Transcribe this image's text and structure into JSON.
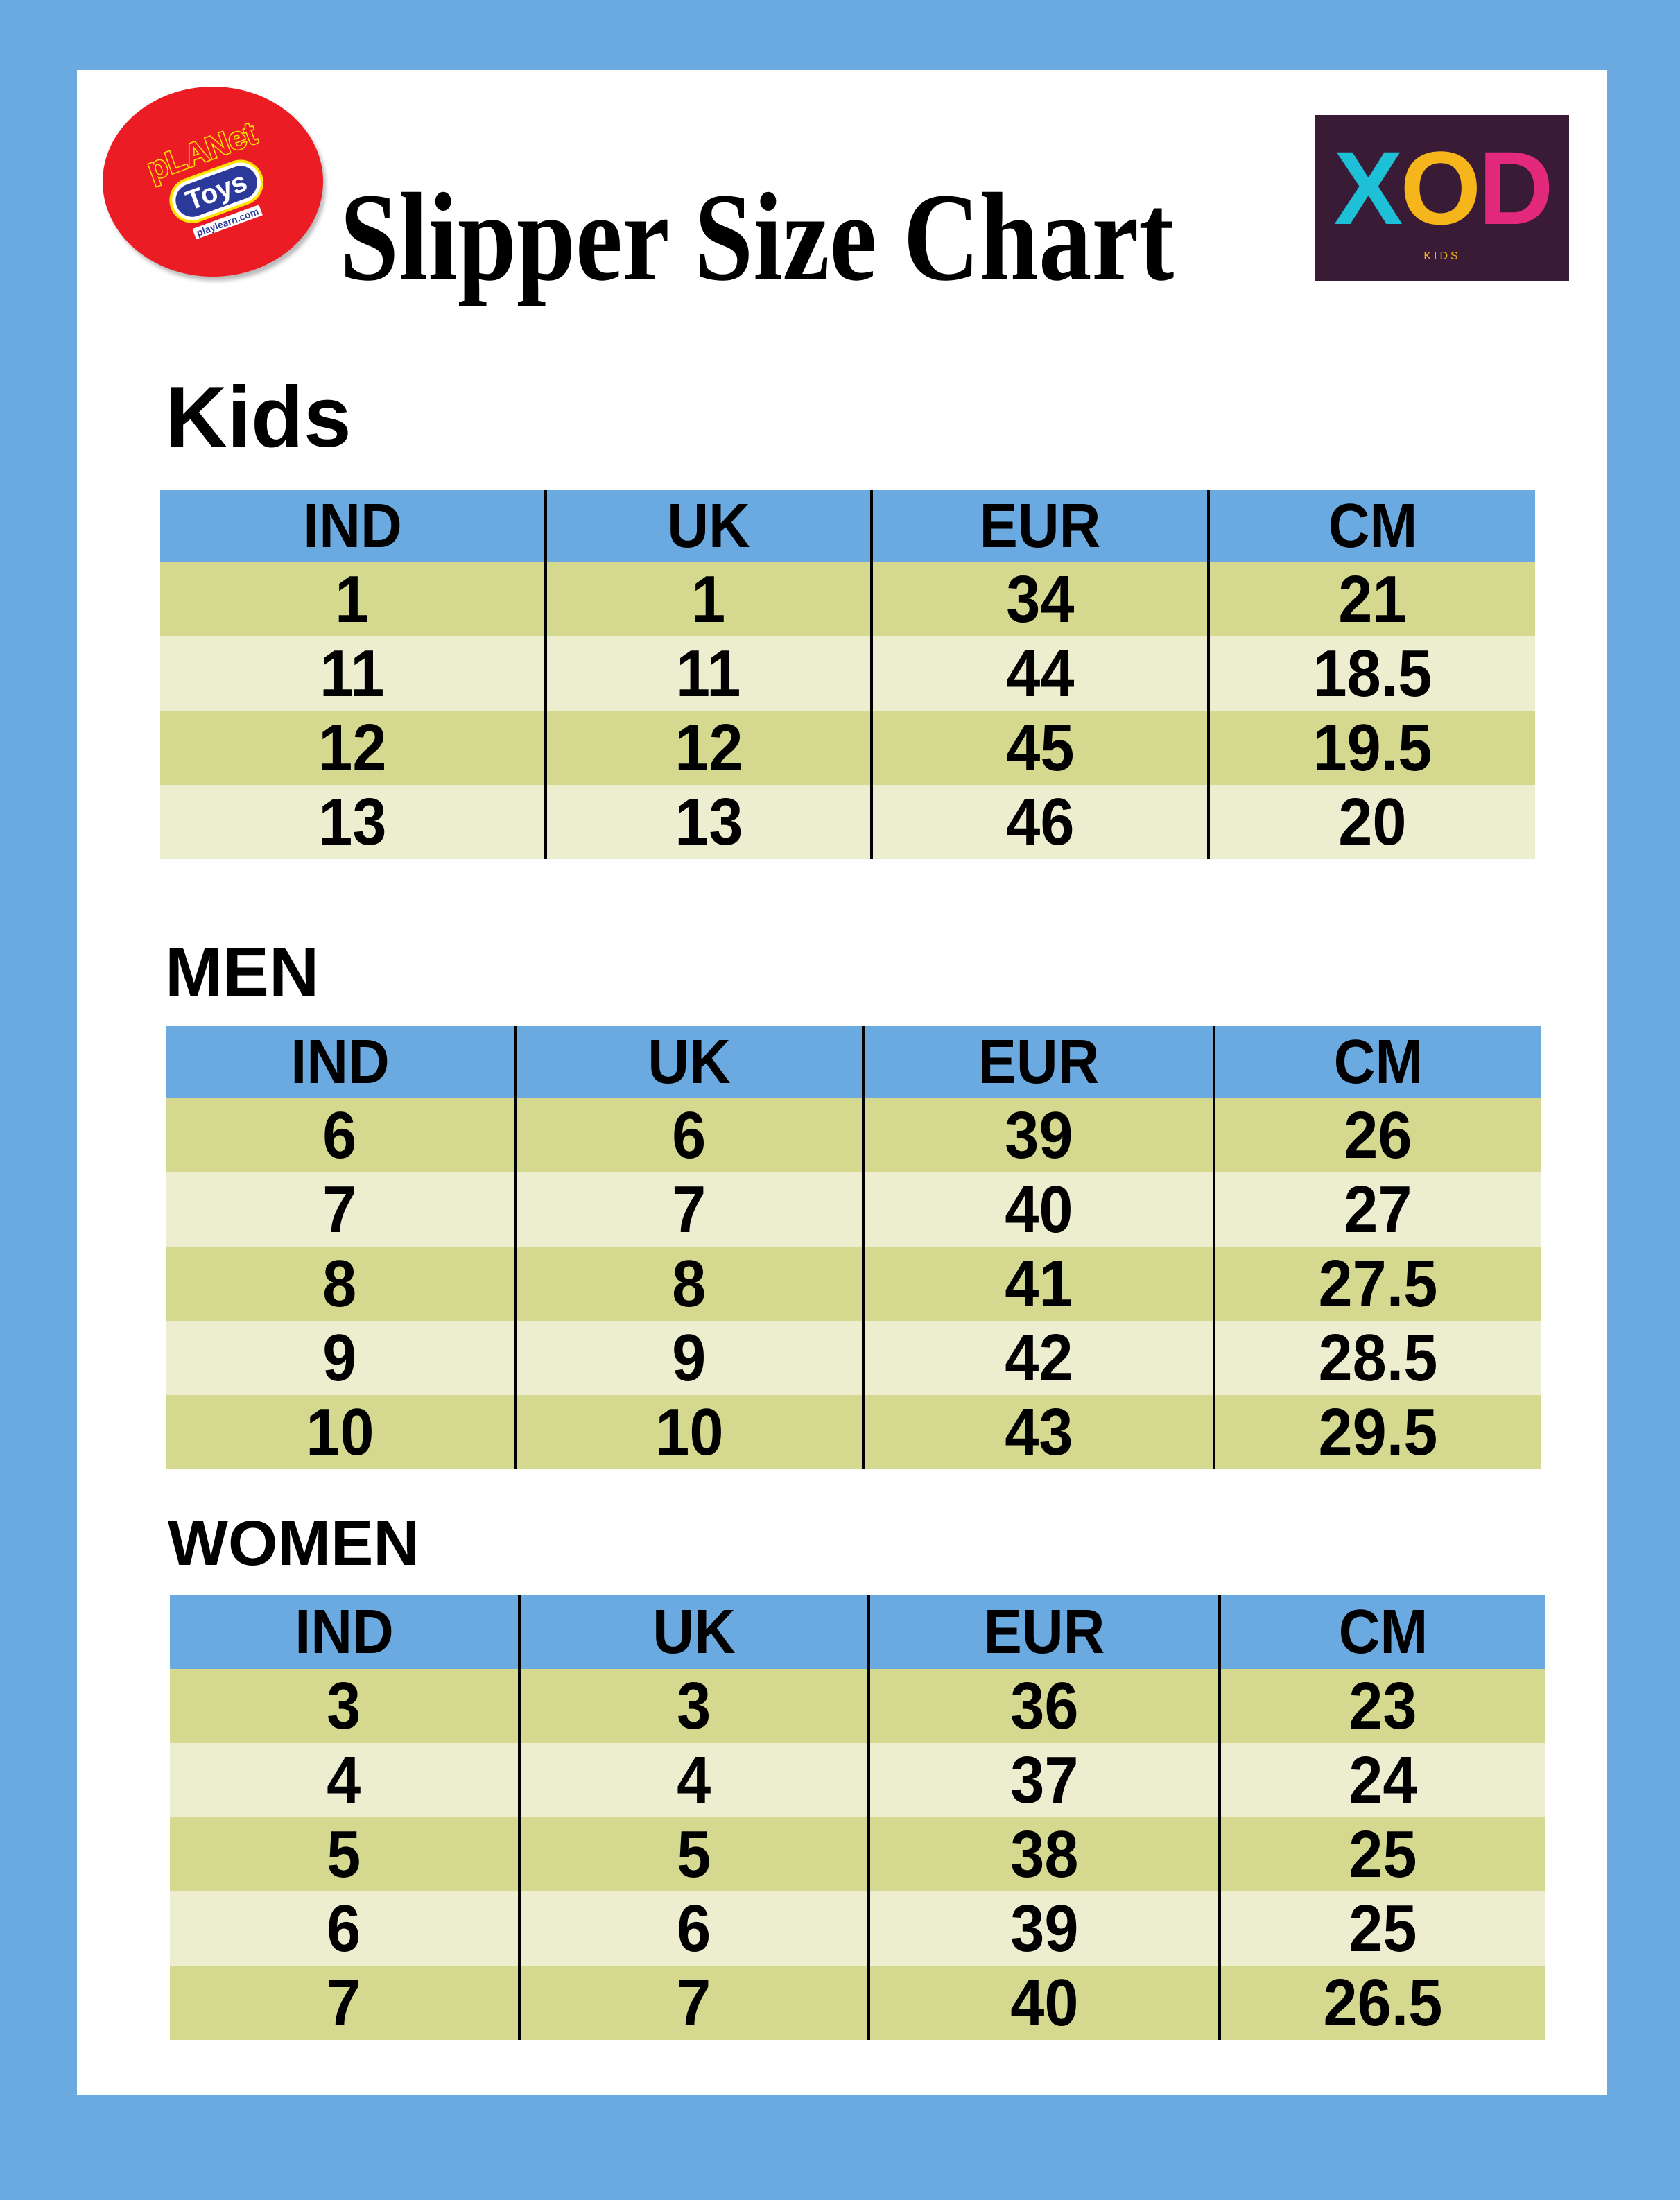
{
  "title": "Slipper Size Chart",
  "logos": {
    "left": {
      "text": "Planet of Toys",
      "planet": "pLANet",
      "toys": "Toys",
      "url": "playlearn.com"
    },
    "right": {
      "letters": [
        "X",
        "O",
        "D"
      ],
      "colors": [
        "#1ec0d8",
        "#f6b51b",
        "#e2297b"
      ],
      "sub": "KIDS"
    }
  },
  "colors": {
    "background": "#6aaae0",
    "header": "#6aaae0",
    "row_dark": "#d5d88f",
    "row_light": "#eceecf"
  },
  "sections": [
    {
      "heading": "Kids",
      "columns": [
        "IND",
        "UK",
        "EUR",
        "CM"
      ],
      "rows": [
        [
          "1",
          "1",
          "34",
          "21"
        ],
        [
          "11",
          "11",
          "44",
          "18.5"
        ],
        [
          "12",
          "12",
          "45",
          "19.5"
        ],
        [
          "13",
          "13",
          "46",
          "20"
        ]
      ]
    },
    {
      "heading": "MEN",
      "columns": [
        "IND",
        "UK",
        "EUR",
        "CM"
      ],
      "rows": [
        [
          "6",
          "6",
          "39",
          "26"
        ],
        [
          "7",
          "7",
          "40",
          "27"
        ],
        [
          "8",
          "8",
          "41",
          "27.5"
        ],
        [
          "9",
          "9",
          "42",
          "28.5"
        ],
        [
          "10",
          "10",
          "43",
          "29.5"
        ]
      ]
    },
    {
      "heading": "WOMEN",
      "columns": [
        "IND",
        "UK",
        "EUR",
        "CM"
      ],
      "rows": [
        [
          "3",
          "3",
          "36",
          "23"
        ],
        [
          "4",
          "4",
          "37",
          "24"
        ],
        [
          "5",
          "5",
          "38",
          "25"
        ],
        [
          "6",
          "6",
          "39",
          "25"
        ],
        [
          "7",
          "7",
          "40",
          "26.5"
        ]
      ]
    }
  ]
}
